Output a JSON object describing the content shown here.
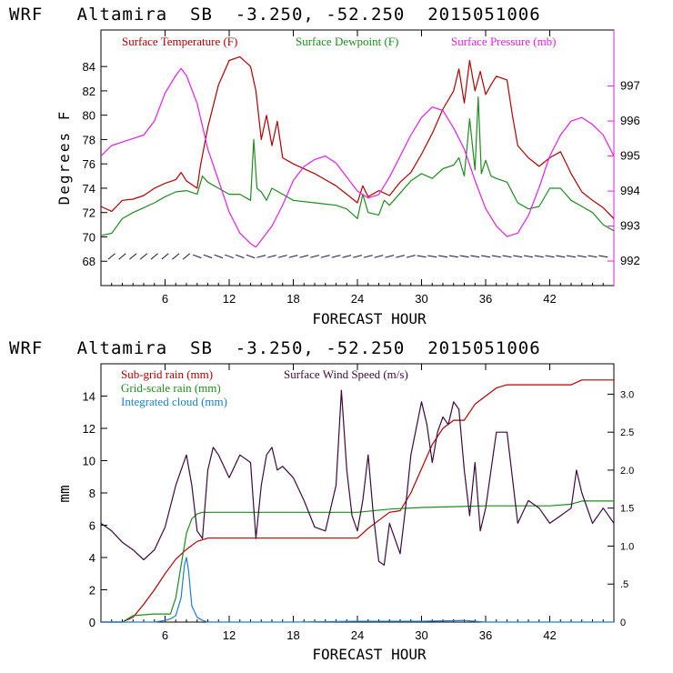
{
  "colors": {
    "temperature": "#b30000",
    "dewpoint": "#1e8c1e",
    "pressure": "#e61ee6",
    "subgrid_rain": "#b30000",
    "gridscale_rain": "#1e8c1e",
    "cloud": "#1a80d0",
    "wind_speed": "#3c0a3c",
    "barbs": "#2a0a4a"
  },
  "chart_data": [
    {
      "type": "line",
      "title": "WRF   Altamira  SB  -3.250, -52.250  2015051006",
      "xlabel": "FORECAST HOUR",
      "ylabel": "Degrees F",
      "xlim": [
        0,
        48
      ],
      "ylim": [
        66,
        87
      ],
      "y2lim": [
        991.3,
        998.6
      ],
      "xticks": [
        6,
        12,
        18,
        24,
        30,
        36,
        42
      ],
      "xtick_labels": [
        "6",
        "12",
        "18",
        "24",
        "30",
        "36",
        "42"
      ],
      "yticks": [
        68,
        70,
        72,
        74,
        76,
        78,
        80,
        82,
        84
      ],
      "ytick_labels": [
        "68",
        "70",
        "72",
        "74",
        "76",
        "78",
        "80",
        "82",
        "84"
      ],
      "y2ticks": [
        992,
        993,
        994,
        995,
        996,
        997
      ],
      "y2tick_labels": [
        "992",
        "993",
        "994",
        "995",
        "996",
        "997"
      ],
      "wind_barb_row": 68.4,
      "series": [
        {
          "name": "Surface Temperature (F)",
          "axis": "left",
          "x": [
            0,
            1,
            2,
            3,
            4,
            5,
            6,
            7,
            7.5,
            8,
            9,
            9.3,
            10,
            11,
            12,
            13,
            14,
            14.5,
            15,
            15.5,
            16,
            16.5,
            17,
            18,
            20,
            22,
            23,
            24,
            24.5,
            25,
            26,
            27,
            28,
            29,
            30,
            31,
            32,
            33,
            33.5,
            34,
            34.5,
            35,
            35.5,
            36,
            36.5,
            37,
            38,
            38.5,
            39,
            40,
            41,
            42,
            43,
            44,
            45,
            46,
            47,
            48
          ],
          "values": [
            72.5,
            72.1,
            73.0,
            73.1,
            73.4,
            74.0,
            74.4,
            74.7,
            75.3,
            74.6,
            74.0,
            75.8,
            79.0,
            82.5,
            84.5,
            84.8,
            84.0,
            82.0,
            78.0,
            80.0,
            77.5,
            79.5,
            76.5,
            76.0,
            75.2,
            74.2,
            73.5,
            72.8,
            74.2,
            73.3,
            73.8,
            73.4,
            74.5,
            75.3,
            76.8,
            78.5,
            80.5,
            82.0,
            83.8,
            81.0,
            84.5,
            82.0,
            83.6,
            81.7,
            82.5,
            83.2,
            82.9,
            80.0,
            77.5,
            76.5,
            75.8,
            76.5,
            77.0,
            75.2,
            73.7,
            73.0,
            72.4,
            71.5
          ]
        },
        {
          "name": "Surface Dewpoint (F)",
          "axis": "left",
          "x": [
            0,
            1,
            2,
            3,
            4,
            5,
            6,
            7,
            8,
            9,
            9.5,
            10,
            11,
            12,
            13,
            14,
            14.3,
            14.6,
            15,
            15.5,
            16,
            17,
            18,
            20,
            22,
            23,
            24,
            24.5,
            25,
            26,
            26.5,
            27,
            28,
            29,
            30,
            31,
            32,
            33,
            33.5,
            34,
            34.5,
            35,
            35.3,
            35.6,
            36,
            36.5,
            37,
            38,
            39,
            40,
            41,
            42,
            43,
            44,
            45,
            46,
            47,
            48
          ],
          "values": [
            70.1,
            70.3,
            71.5,
            72.0,
            72.4,
            72.8,
            73.3,
            73.7,
            73.8,
            73.5,
            75.0,
            74.5,
            74.0,
            73.5,
            73.5,
            73.0,
            78.0,
            74.0,
            73.7,
            73.0,
            74.0,
            73.5,
            73.0,
            72.8,
            72.6,
            72.3,
            71.5,
            73.5,
            72.0,
            71.8,
            73.0,
            72.6,
            73.6,
            74.6,
            75.2,
            74.8,
            75.6,
            75.9,
            76.5,
            75.0,
            79.7,
            75.5,
            81.5,
            75.2,
            76.3,
            75.0,
            74.8,
            74.5,
            72.8,
            72.3,
            72.5,
            74.0,
            74.0,
            73.0,
            72.5,
            72.0,
            71.0,
            70.5
          ]
        },
        {
          "name": "Surface Pressure (mb)",
          "axis": "right",
          "x": [
            0,
            1,
            2,
            3,
            4,
            5,
            6,
            7,
            7.5,
            8,
            9,
            10,
            11,
            12,
            13,
            14,
            14.5,
            15,
            16,
            17,
            18,
            19,
            20,
            21,
            22,
            23,
            24,
            25,
            26,
            27,
            28,
            29,
            30,
            31,
            32,
            33,
            34,
            35,
            36,
            37,
            38,
            39,
            40,
            41,
            42,
            43,
            44,
            45,
            46,
            47,
            48
          ],
          "values": [
            995.0,
            995.3,
            995.4,
            995.5,
            995.6,
            996.0,
            996.8,
            997.3,
            997.5,
            997.3,
            996.5,
            995.2,
            994.3,
            993.4,
            992.8,
            992.5,
            992.4,
            992.6,
            993.0,
            993.6,
            994.3,
            994.7,
            994.9,
            995.0,
            994.8,
            994.4,
            994.0,
            993.8,
            993.9,
            994.4,
            995.0,
            995.6,
            996.1,
            996.4,
            996.3,
            995.8,
            995.2,
            994.3,
            993.5,
            993.0,
            992.7,
            992.8,
            993.3,
            994.1,
            995.0,
            995.6,
            996.0,
            996.1,
            995.9,
            995.6,
            995.0
          ]
        }
      ]
    },
    {
      "type": "line",
      "title": "WRF   Altamira  SB  -3.250, -52.250  2015051006",
      "xlabel": "FORECAST HOUR",
      "ylabel": "mm",
      "xlim": [
        0,
        48
      ],
      "ylim": [
        0,
        16
      ],
      "y2lim": [
        0,
        3.4
      ],
      "xticks": [
        6,
        12,
        18,
        24,
        30,
        36,
        42
      ],
      "xtick_labels": [
        "6",
        "12",
        "18",
        "24",
        "30",
        "36",
        "42"
      ],
      "yticks": [
        0,
        2,
        4,
        6,
        8,
        10,
        12,
        14
      ],
      "ytick_labels": [
        "0",
        "2",
        "4",
        "6",
        "8",
        "10",
        "12",
        "14"
      ],
      "y2ticks": [
        0,
        0.5,
        1.0,
        1.5,
        2.0,
        2.5,
        3.0
      ],
      "y2tick_labels": [
        "0",
        ".5",
        "1.0",
        "1.5",
        "2.0",
        "2.5",
        "3.0"
      ],
      "series": [
        {
          "name": "Sub-grid rain (mm)",
          "axis": "left",
          "x": [
            0,
            2,
            3,
            4,
            5,
            6,
            7,
            8,
            9,
            10,
            12,
            14,
            16,
            18,
            20,
            22,
            24,
            25,
            26,
            27,
            28,
            29,
            30,
            31,
            32,
            33,
            34,
            35,
            36,
            37,
            38,
            40,
            42,
            44,
            45,
            46,
            48
          ],
          "values": [
            0,
            0,
            0.3,
            1.1,
            2.0,
            3.0,
            3.9,
            4.5,
            5.0,
            5.2,
            5.2,
            5.2,
            5.2,
            5.2,
            5.2,
            5.2,
            5.2,
            5.8,
            6.3,
            6.8,
            6.9,
            8.0,
            9.5,
            11.0,
            12.0,
            12.5,
            12.5,
            13.5,
            14.0,
            14.5,
            14.7,
            14.7,
            14.7,
            14.7,
            15.0,
            15.0,
            15.0
          ]
        },
        {
          "name": "Grid-scale rain (mm)",
          "axis": "left",
          "x": [
            0,
            2,
            3,
            5,
            6.5,
            7,
            7.5,
            8,
            8.5,
            9,
            9.5,
            10,
            12,
            18,
            24,
            27,
            30,
            36,
            42,
            44,
            45,
            48
          ],
          "values": [
            0,
            0,
            0.4,
            0.5,
            0.5,
            1.5,
            3.5,
            5.5,
            6.4,
            6.7,
            6.8,
            6.8,
            6.8,
            6.8,
            6.8,
            7.0,
            7.1,
            7.2,
            7.2,
            7.3,
            7.5,
            7.5
          ]
        },
        {
          "name": "Integrated cloud (mm)",
          "axis": "left",
          "x": [
            0,
            5,
            6,
            6.5,
            7,
            7.5,
            7.8,
            8.0,
            8.2,
            8.5,
            9,
            9.5,
            10,
            10.5,
            12,
            18,
            24,
            30,
            34,
            35,
            36,
            42,
            48
          ],
          "values": [
            0,
            0,
            0.1,
            0.2,
            0.4,
            1.5,
            3.5,
            4.0,
            3.2,
            1.0,
            0.3,
            0.1,
            0.0,
            0.0,
            0.0,
            0.0,
            0.05,
            0.05,
            0.1,
            0.05,
            0.0,
            0.0,
            0.0
          ]
        },
        {
          "name": "Surface Wind Speed (m/s)",
          "axis": "right",
          "x": [
            0,
            1,
            2,
            3,
            4,
            5,
            6,
            7,
            7.5,
            8,
            8.5,
            9,
            9.5,
            10,
            10.5,
            11,
            12,
            13,
            14,
            14.5,
            15,
            15.5,
            16,
            16.5,
            17,
            18,
            19,
            20,
            21,
            22,
            22.5,
            23,
            23.5,
            24,
            24.5,
            25,
            25.5,
            26,
            26.5,
            27,
            28,
            28.5,
            29,
            30,
            30.5,
            31,
            31.5,
            32,
            32.5,
            33,
            33.5,
            34,
            34.5,
            35,
            35.5,
            36,
            36.5,
            37,
            38,
            39,
            40,
            41,
            42,
            43,
            44,
            44.5,
            45,
            46,
            47,
            48
          ],
          "values": [
            1.3,
            1.2,
            1.05,
            0.95,
            0.82,
            0.95,
            1.25,
            1.8,
            2.0,
            2.2,
            1.8,
            1.2,
            1.1,
            2.0,
            2.3,
            2.2,
            1.9,
            2.2,
            2.1,
            1.1,
            1.8,
            2.2,
            2.3,
            2.0,
            2.05,
            1.9,
            1.6,
            1.25,
            1.2,
            1.8,
            3.05,
            2.0,
            1.4,
            1.2,
            1.6,
            2.2,
            1.4,
            0.8,
            0.75,
            1.3,
            0.9,
            1.5,
            2.2,
            2.9,
            2.6,
            2.1,
            2.5,
            2.7,
            2.6,
            2.9,
            2.8,
            2.0,
            1.4,
            2.1,
            1.2,
            1.5,
            2.0,
            2.5,
            2.5,
            1.3,
            1.6,
            1.5,
            1.3,
            1.4,
            1.5,
            2.0,
            1.7,
            1.3,
            1.5,
            1.3
          ]
        }
      ]
    }
  ]
}
